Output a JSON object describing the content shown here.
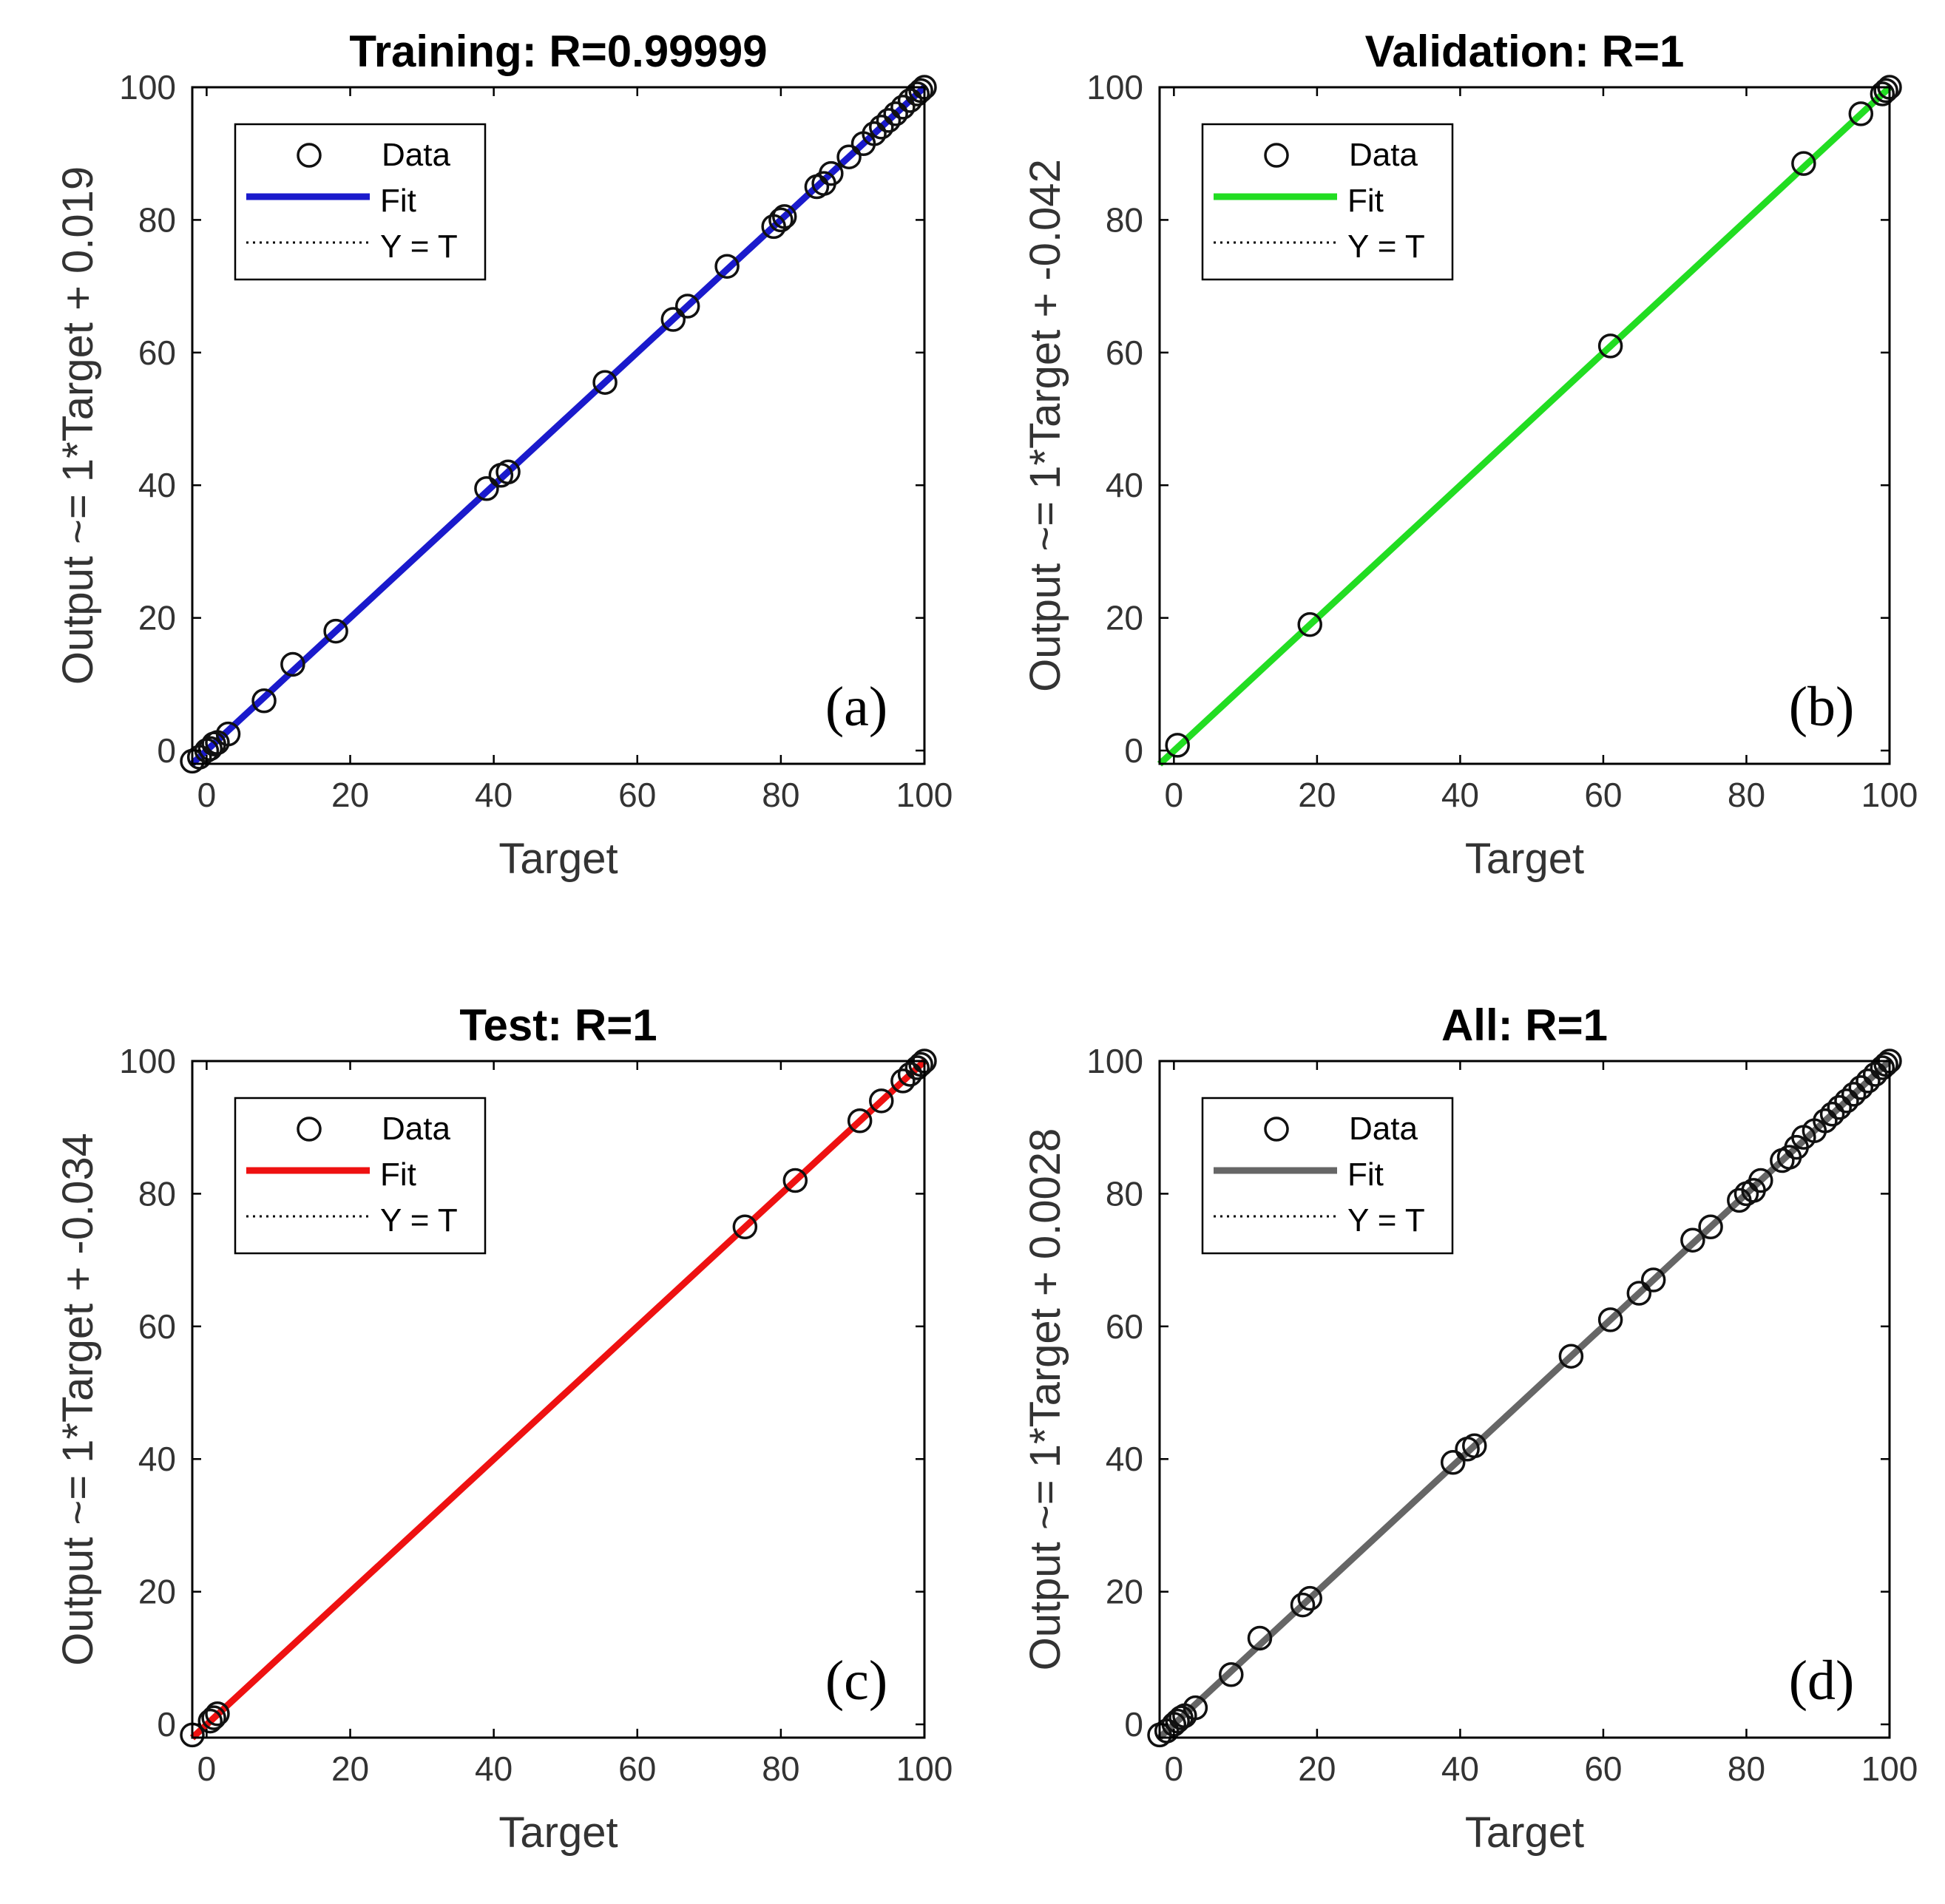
{
  "chart_data": [
    {
      "type": "scatter",
      "title": "Training: R=0.99999",
      "xlabel": "Target",
      "ylabel": "Output ~= 1*Target + 0.019",
      "panel_label": "(a)",
      "xlim": [
        -2,
        100
      ],
      "ylim": [
        -2,
        100
      ],
      "xticks": [
        0,
        20,
        40,
        60,
        80,
        100
      ],
      "yticks": [
        0,
        20,
        40,
        60,
        80,
        100
      ],
      "fit": {
        "slope": 1,
        "intercept": 0.019,
        "color": "#1a1acc"
      },
      "legend": {
        "placement": "top-left",
        "entries": [
          "Data",
          "Fit",
          "Y = T"
        ]
      },
      "points": [
        [
          -2,
          -1.6
        ],
        [
          -1,
          -1
        ],
        [
          0,
          0
        ],
        [
          0.5,
          0.3
        ],
        [
          1,
          1
        ],
        [
          1.5,
          1.2
        ],
        [
          3,
          2.5
        ],
        [
          8,
          7.5
        ],
        [
          12,
          13
        ],
        [
          18,
          18
        ],
        [
          39,
          39.5
        ],
        [
          41,
          41.5
        ],
        [
          42,
          42
        ],
        [
          55.5,
          55.5
        ],
        [
          65,
          65
        ],
        [
          67,
          67
        ],
        [
          72.5,
          73
        ],
        [
          79,
          79
        ],
        [
          80,
          80
        ],
        [
          80.5,
          80.5
        ],
        [
          85,
          85
        ],
        [
          86,
          85.5
        ],
        [
          87,
          87
        ],
        [
          89.5,
          89.5
        ],
        [
          91.5,
          91.5
        ],
        [
          93,
          93
        ],
        [
          94,
          94
        ],
        [
          95,
          95
        ],
        [
          96,
          96
        ],
        [
          97,
          97
        ],
        [
          98,
          98
        ],
        [
          99,
          99
        ],
        [
          99.5,
          99.5
        ],
        [
          100,
          100
        ]
      ]
    },
    {
      "type": "scatter",
      "title": "Validation: R=1",
      "xlabel": "Target",
      "ylabel": "Output ~= 1*Target + -0.042",
      "panel_label": "(b)",
      "xlim": [
        -2,
        100
      ],
      "ylim": [
        -2,
        100
      ],
      "xticks": [
        0,
        20,
        40,
        60,
        80,
        100
      ],
      "yticks": [
        0,
        20,
        40,
        60,
        80,
        100
      ],
      "fit": {
        "slope": 1,
        "intercept": -0.042,
        "color": "#22dd22"
      },
      "legend": {
        "placement": "top-left",
        "entries": [
          "Data",
          "Fit",
          "Y = T"
        ]
      },
      "points": [
        [
          0.5,
          0.8
        ],
        [
          19,
          19
        ],
        [
          61,
          61
        ],
        [
          88,
          88.5
        ],
        [
          96,
          96
        ],
        [
          99,
          99
        ],
        [
          99.5,
          99.5
        ],
        [
          100,
          100
        ]
      ]
    },
    {
      "type": "scatter",
      "title": "Test: R=1",
      "xlabel": "Target",
      "ylabel": "Output ~= 1*Target + -0.034",
      "panel_label": "(c)",
      "xlim": [
        -2,
        100
      ],
      "ylim": [
        -2,
        100
      ],
      "xticks": [
        0,
        20,
        40,
        60,
        80,
        100
      ],
      "yticks": [
        0,
        20,
        40,
        60,
        80,
        100
      ],
      "fit": {
        "slope": 1,
        "intercept": -0.034,
        "color": "#ee1111"
      },
      "legend": {
        "placement": "top-left",
        "entries": [
          "Data",
          "Fit",
          "Y = T"
        ]
      },
      "points": [
        [
          -2,
          -1.6
        ],
        [
          0.5,
          0.5
        ],
        [
          1,
          1
        ],
        [
          1.5,
          1.6
        ],
        [
          75,
          75
        ],
        [
          82,
          82
        ],
        [
          91,
          91
        ],
        [
          94,
          94
        ],
        [
          97,
          97
        ],
        [
          98,
          98
        ],
        [
          99,
          99
        ],
        [
          99.5,
          99.5
        ],
        [
          100,
          100
        ]
      ]
    },
    {
      "type": "scatter",
      "title": "All: R=1",
      "xlabel": "Target",
      "ylabel": "Output ~= 1*Target + 0.0028",
      "panel_label": "(d)",
      "xlim": [
        -2,
        100
      ],
      "ylim": [
        -2,
        100
      ],
      "xticks": [
        0,
        20,
        40,
        60,
        80,
        100
      ],
      "yticks": [
        0,
        20,
        40,
        60,
        80,
        100
      ],
      "fit": {
        "slope": 1,
        "intercept": 0.0028,
        "color": "#666666"
      },
      "legend": {
        "placement": "top-left",
        "entries": [
          "Data",
          "Fit",
          "Y = T"
        ]
      },
      "points": [
        [
          -2,
          -1.6
        ],
        [
          -1,
          -1
        ],
        [
          0,
          0
        ],
        [
          0.5,
          0.5
        ],
        [
          1,
          1
        ],
        [
          1.5,
          1.3
        ],
        [
          3,
          2.5
        ],
        [
          8,
          7.5
        ],
        [
          12,
          13
        ],
        [
          18,
          18
        ],
        [
          19,
          19
        ],
        [
          39,
          39.5
        ],
        [
          41,
          41.5
        ],
        [
          42,
          42
        ],
        [
          55.5,
          55.5
        ],
        [
          61,
          61
        ],
        [
          65,
          65
        ],
        [
          67,
          67
        ],
        [
          72.5,
          73
        ],
        [
          75,
          75
        ],
        [
          79,
          79
        ],
        [
          80,
          80
        ],
        [
          81,
          80.5
        ],
        [
          82,
          82
        ],
        [
          85,
          85
        ],
        [
          86,
          85.5
        ],
        [
          87,
          87
        ],
        [
          88,
          88.5
        ],
        [
          89.5,
          89.5
        ],
        [
          91,
          91
        ],
        [
          92,
          92
        ],
        [
          93,
          93
        ],
        [
          94,
          94
        ],
        [
          95,
          95
        ],
        [
          96,
          96
        ],
        [
          97,
          97
        ],
        [
          98,
          98
        ],
        [
          99,
          99
        ],
        [
          99.5,
          99.5
        ],
        [
          100,
          100
        ]
      ]
    }
  ]
}
